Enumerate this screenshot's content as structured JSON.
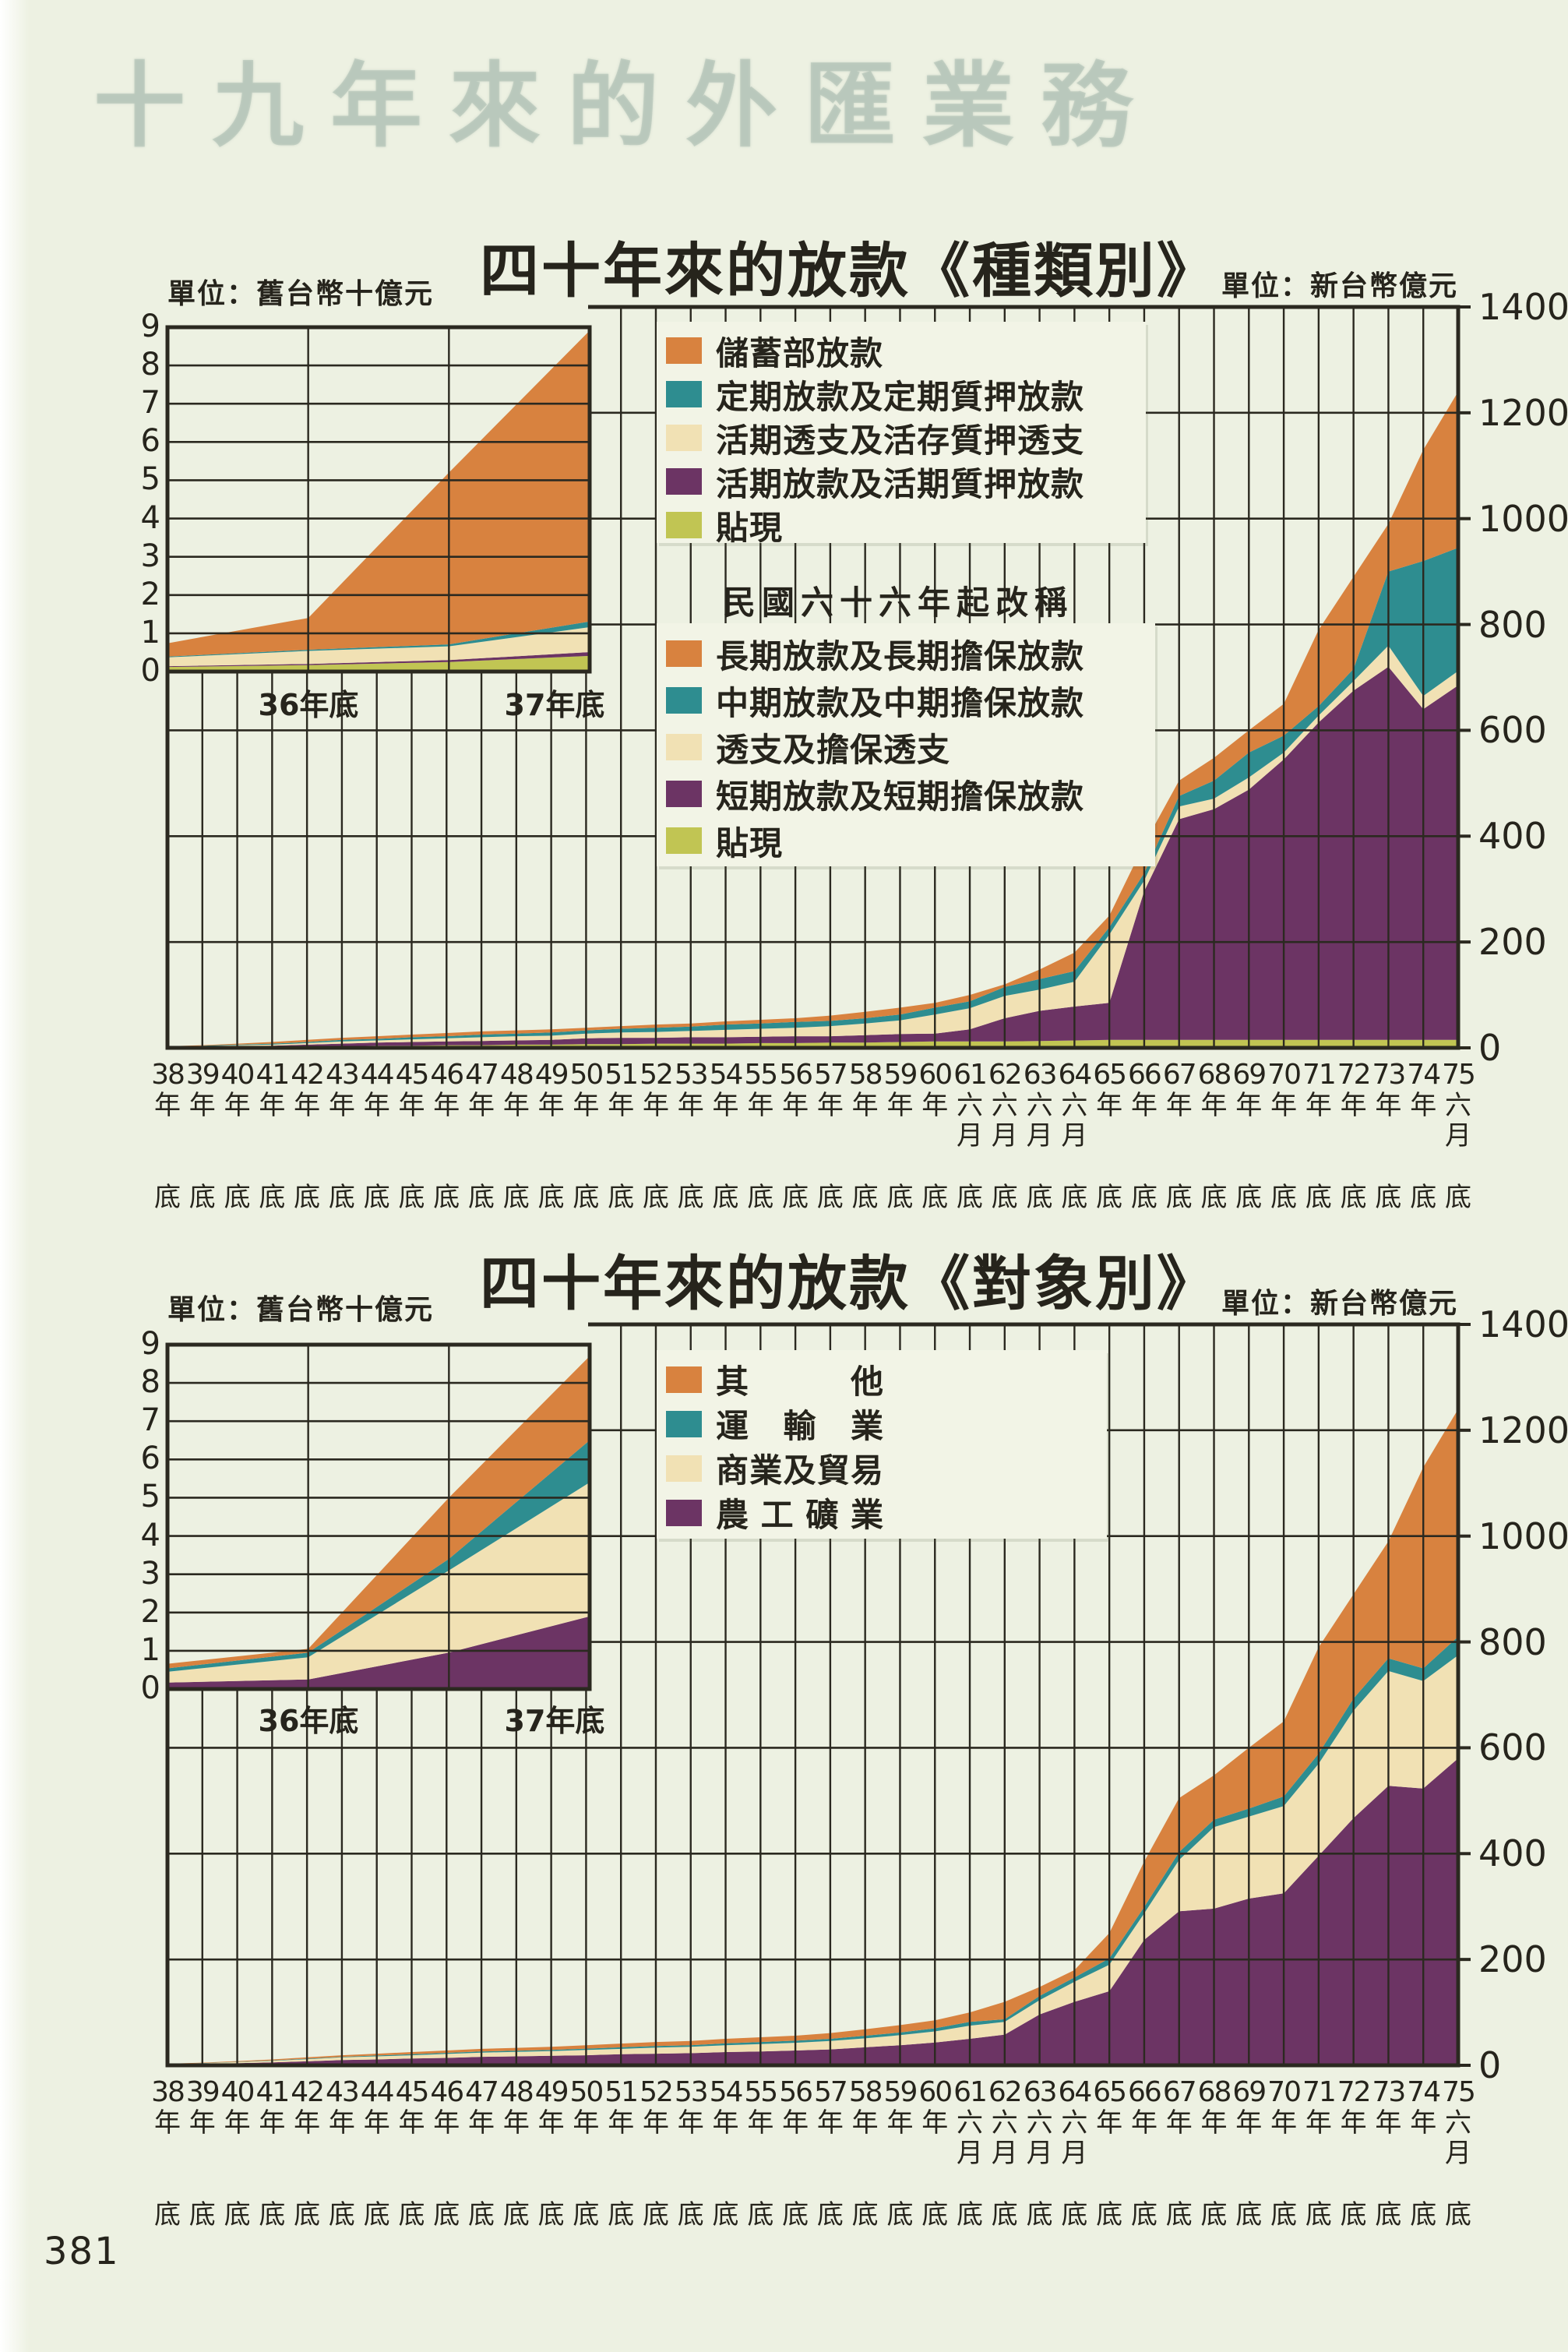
{
  "page": {
    "number": "381",
    "bleed_text": "十九年來的外匯業務"
  },
  "colors": {
    "paper": "#edf1e2",
    "panel": "#f2f4e6",
    "ink": "#26241c",
    "grid": "#2b2920",
    "orange": "#d8823f",
    "teal": "#2e8d90",
    "cream": "#f1e1b4",
    "purple": "#6c3464",
    "green": "#c1c553"
  },
  "axis": {
    "right_ticks": [
      "1400",
      "1200",
      "1000",
      "800",
      "600",
      "400",
      "200",
      "0"
    ]
  },
  "chart_data": [
    {
      "type": "area",
      "stacked": true,
      "title": "四十年來的放款《種類別》",
      "unit_left": "單位：舊台幣十億元",
      "unit_right": "單位：新台幣億元",
      "ylabel": "新台幣億元",
      "ylim": [
        0,
        1400
      ],
      "grid": true,
      "categories": [
        "38年底",
        "39年底",
        "40年底",
        "41年底",
        "42年底",
        "43年底",
        "44年底",
        "45年底",
        "46年底",
        "47年底",
        "48年底",
        "49年底",
        "50年底",
        "51年底",
        "52年底",
        "53年底",
        "54年底",
        "55年底",
        "56年底",
        "57年底",
        "58年底",
        "59年底",
        "60年底",
        "61六月底",
        "62六月底",
        "63六月底",
        "64六月底",
        "65年底",
        "66年底",
        "67年底",
        "68年底",
        "69年底",
        "70年底",
        "71年底",
        "72年底",
        "73年底",
        "74年底",
        "75六月底"
      ],
      "legend": [
        {
          "label": "儲蓄部放款",
          "color": "orange"
        },
        {
          "label": "定期放款及定期質押放款",
          "color": "teal"
        },
        {
          "label": "活期透支及活存質押透支",
          "color": "cream"
        },
        {
          "label": "活期放款及活期質押放款",
          "color": "purple"
        },
        {
          "label": "貼現",
          "color": "green"
        }
      ],
      "legend2_header": "民國六十六年起改稱",
      "legend2": [
        {
          "label": "長期放款及長期擔保放款",
          "color": "orange"
        },
        {
          "label": "中期放款及中期擔保放款",
          "color": "teal"
        },
        {
          "label": "透支及擔保透支",
          "color": "cream"
        },
        {
          "label": "短期放款及短期擔保放款",
          "color": "purple"
        },
        {
          "label": "貼現",
          "color": "green"
        }
      ],
      "series": [
        {
          "name": "貼現",
          "color": "green",
          "values": [
            0.3,
            0.5,
            1,
            1.5,
            2,
            3,
            4,
            4,
            5,
            5,
            6,
            6,
            7,
            7,
            8,
            8,
            8,
            9,
            9,
            10,
            10,
            11,
            12,
            12,
            12,
            13,
            14,
            15,
            15,
            15,
            15,
            15,
            15,
            15,
            15,
            15,
            15,
            15
          ]
        },
        {
          "name": "活期放款及活期質押放款 → 短期放款及短期擔保放款",
          "color": "purple",
          "values": [
            0.7,
            1.5,
            2,
            2.5,
            4,
            5,
            6,
            7,
            7,
            8,
            8,
            9,
            11,
            12,
            11,
            12,
            12,
            12,
            13,
            12,
            14,
            15,
            15,
            23,
            44,
            57,
            64,
            70,
            281,
            417,
            436,
            473,
            530,
            600,
            660,
            705,
            625,
            670
          ]
        },
        {
          "name": "活期透支及活存質押透支 → 透支及擔保透支",
          "color": "cream",
          "values": [
            0.5,
            1,
            2,
            2,
            3,
            4,
            4,
            5,
            6,
            7,
            8,
            8,
            9,
            10,
            11,
            12,
            14,
            15,
            16,
            19,
            22,
            26,
            36,
            40,
            42,
            40,
            47,
            129,
            20,
            24,
            20,
            23,
            13,
            13,
            18,
            40,
            25,
            27
          ]
        },
        {
          "name": "定期放款及定期質押放款 → 中期放款及中期擔保放款",
          "color": "teal",
          "values": [
            0.5,
            1,
            1,
            2,
            2,
            3,
            3,
            4,
            4,
            5,
            5,
            6,
            6,
            7,
            8,
            8,
            10,
            10,
            11,
            10,
            10,
            11,
            13,
            13,
            17,
            20,
            20,
            14,
            14,
            20,
            34,
            47,
            32,
            18,
            23,
            140,
            255,
            233
          ]
        },
        {
          "name": "儲蓄部放款 → 長期放款及長期擔保放款",
          "color": "orange",
          "values": [
            1,
            1,
            2,
            3,
            4,
            4,
            5,
            5,
            6,
            6,
            6,
            6,
            5,
            5,
            6,
            6,
            6,
            7,
            7,
            10,
            12,
            13,
            9,
            12,
            5,
            18,
            35,
            22,
            55,
            29,
            43,
            42,
            60,
            144,
            174,
            90,
            210,
            295
          ]
        }
      ],
      "inset": {
        "type": "area",
        "stacked": true,
        "unit": "舊台幣十億元",
        "ylim": [
          0,
          9
        ],
        "yticks": [
          "9",
          "8",
          "7",
          "6",
          "5",
          "4",
          "3",
          "2",
          "1",
          "0"
        ],
        "x_labels": [
          "36年底",
          "37年底"
        ],
        "categories": [
          "",
          "36年底",
          "",
          "37年底"
        ],
        "series": [
          {
            "name": "貼現",
            "color": "green",
            "values": [
              0.12,
              0.17,
              0.25,
              0.41
            ]
          },
          {
            "name": "活期放款及活期質押放款",
            "color": "purple",
            "values": [
              0.02,
              0.03,
              0.05,
              0.1
            ]
          },
          {
            "name": "活期透支及活存質押透支",
            "color": "cream",
            "values": [
              0.23,
              0.34,
              0.36,
              0.65
            ]
          },
          {
            "name": "定期放款及定期質押放款",
            "color": "teal",
            "values": [
              0.02,
              0.03,
              0.05,
              0.15
            ]
          },
          {
            "name": "儲蓄部放款",
            "color": "orange",
            "values": [
              0.35,
              0.83,
              4.49,
              7.6
            ]
          }
        ]
      }
    },
    {
      "type": "area",
      "stacked": true,
      "title": "四十年來的放款《對象別》",
      "unit_left": "單位：舊台幣十億元",
      "unit_right": "單位：新台幣億元",
      "ylabel": "新台幣億元",
      "ylim": [
        0,
        1400
      ],
      "grid": true,
      "categories": [
        "38年底",
        "39年底",
        "40年底",
        "41年底",
        "42年底",
        "43年底",
        "44年底",
        "45年底",
        "46年底",
        "47年底",
        "48年底",
        "49年底",
        "50年底",
        "51年底",
        "52年底",
        "53年底",
        "54年底",
        "55年底",
        "56年底",
        "57年底",
        "58年底",
        "59年底",
        "60年底",
        "61六月底",
        "62六月底",
        "63六月底",
        "64六月底",
        "65年底",
        "66年底",
        "67年底",
        "68年底",
        "69年底",
        "70年底",
        "71年底",
        "72年底",
        "73年底",
        "74年底",
        "75六月底"
      ],
      "legend": [
        {
          "label": "其他",
          "color": "orange"
        },
        {
          "label": "運輸業",
          "color": "teal"
        },
        {
          "label": "商業及貿易",
          "color": "cream"
        },
        {
          "label": "農工礦業",
          "color": "purple"
        }
      ],
      "series": [
        {
          "name": "農工礦業",
          "color": "purple",
          "values": [
            1.5,
            2.5,
            4,
            5.5,
            7.5,
            10,
            11,
            13,
            14,
            16,
            17,
            18,
            19,
            21,
            22,
            23,
            25,
            26,
            28,
            30,
            34,
            38,
            43,
            50,
            58,
            96,
            120,
            140,
            237,
            291,
            296,
            315,
            325,
            396,
            467,
            528,
            523,
            580
          ]
        },
        {
          "name": "商業及貿易",
          "color": "cream",
          "values": [
            0.7,
            1.3,
            2,
            3,
            4,
            5,
            6,
            6,
            7.5,
            8,
            8.5,
            9,
            10,
            10,
            11.5,
            12,
            13,
            14,
            14.5,
            16,
            17,
            19,
            21,
            25,
            24,
            27,
            38,
            50,
            50,
            97,
            154,
            155,
            165,
            174,
            203,
            217,
            203,
            195
          ]
        },
        {
          "name": "運輸業",
          "color": "teal",
          "values": [
            0.3,
            0.4,
            0.6,
            0.7,
            1,
            1,
            1.5,
            2,
            2,
            2,
            2,
            2,
            2.5,
            3,
            3,
            3,
            3.5,
            4,
            4,
            4,
            5,
            5,
            6,
            7,
            5,
            8,
            8,
            12,
            12,
            15,
            14,
            15,
            18,
            19,
            23,
            24,
            24,
            35
          ]
        },
        {
          "name": "其他",
          "color": "orange",
          "values": [
            0.5,
            0.8,
            1.4,
            1.8,
            2.5,
            3,
            3.5,
            4,
            4.5,
            5,
            5.5,
            6,
            6.5,
            7,
            7.5,
            8,
            8.5,
            9,
            9.5,
            11,
            12,
            14,
            15,
            18,
            33,
            17,
            14,
            48,
            86,
            102,
            84,
            115,
            142,
            201,
            197,
            221,
            380,
            430
          ]
        }
      ],
      "inset": {
        "type": "area",
        "stacked": true,
        "unit": "舊台幣十億元",
        "ylim": [
          0,
          9
        ],
        "yticks": [
          "9",
          "8",
          "7",
          "6",
          "5",
          "4",
          "3",
          "2",
          "1",
          "0"
        ],
        "x_labels": [
          "36年底",
          "37年底"
        ],
        "categories": [
          "",
          "36年底",
          "",
          "37年底"
        ],
        "series": [
          {
            "name": "農工礦業",
            "color": "purple",
            "values": [
              0.17,
              0.25,
              0.95,
              1.9
            ]
          },
          {
            "name": "商業及貿易",
            "color": "cream",
            "values": [
              0.28,
              0.58,
              2.15,
              3.5
            ]
          },
          {
            "name": "運輸業",
            "color": "teal",
            "values": [
              0.09,
              0.12,
              0.3,
              1.1
            ]
          },
          {
            "name": "其他",
            "color": "orange",
            "values": [
              0.12,
              0.1,
              1.6,
              2.2
            ]
          }
        ]
      }
    }
  ]
}
